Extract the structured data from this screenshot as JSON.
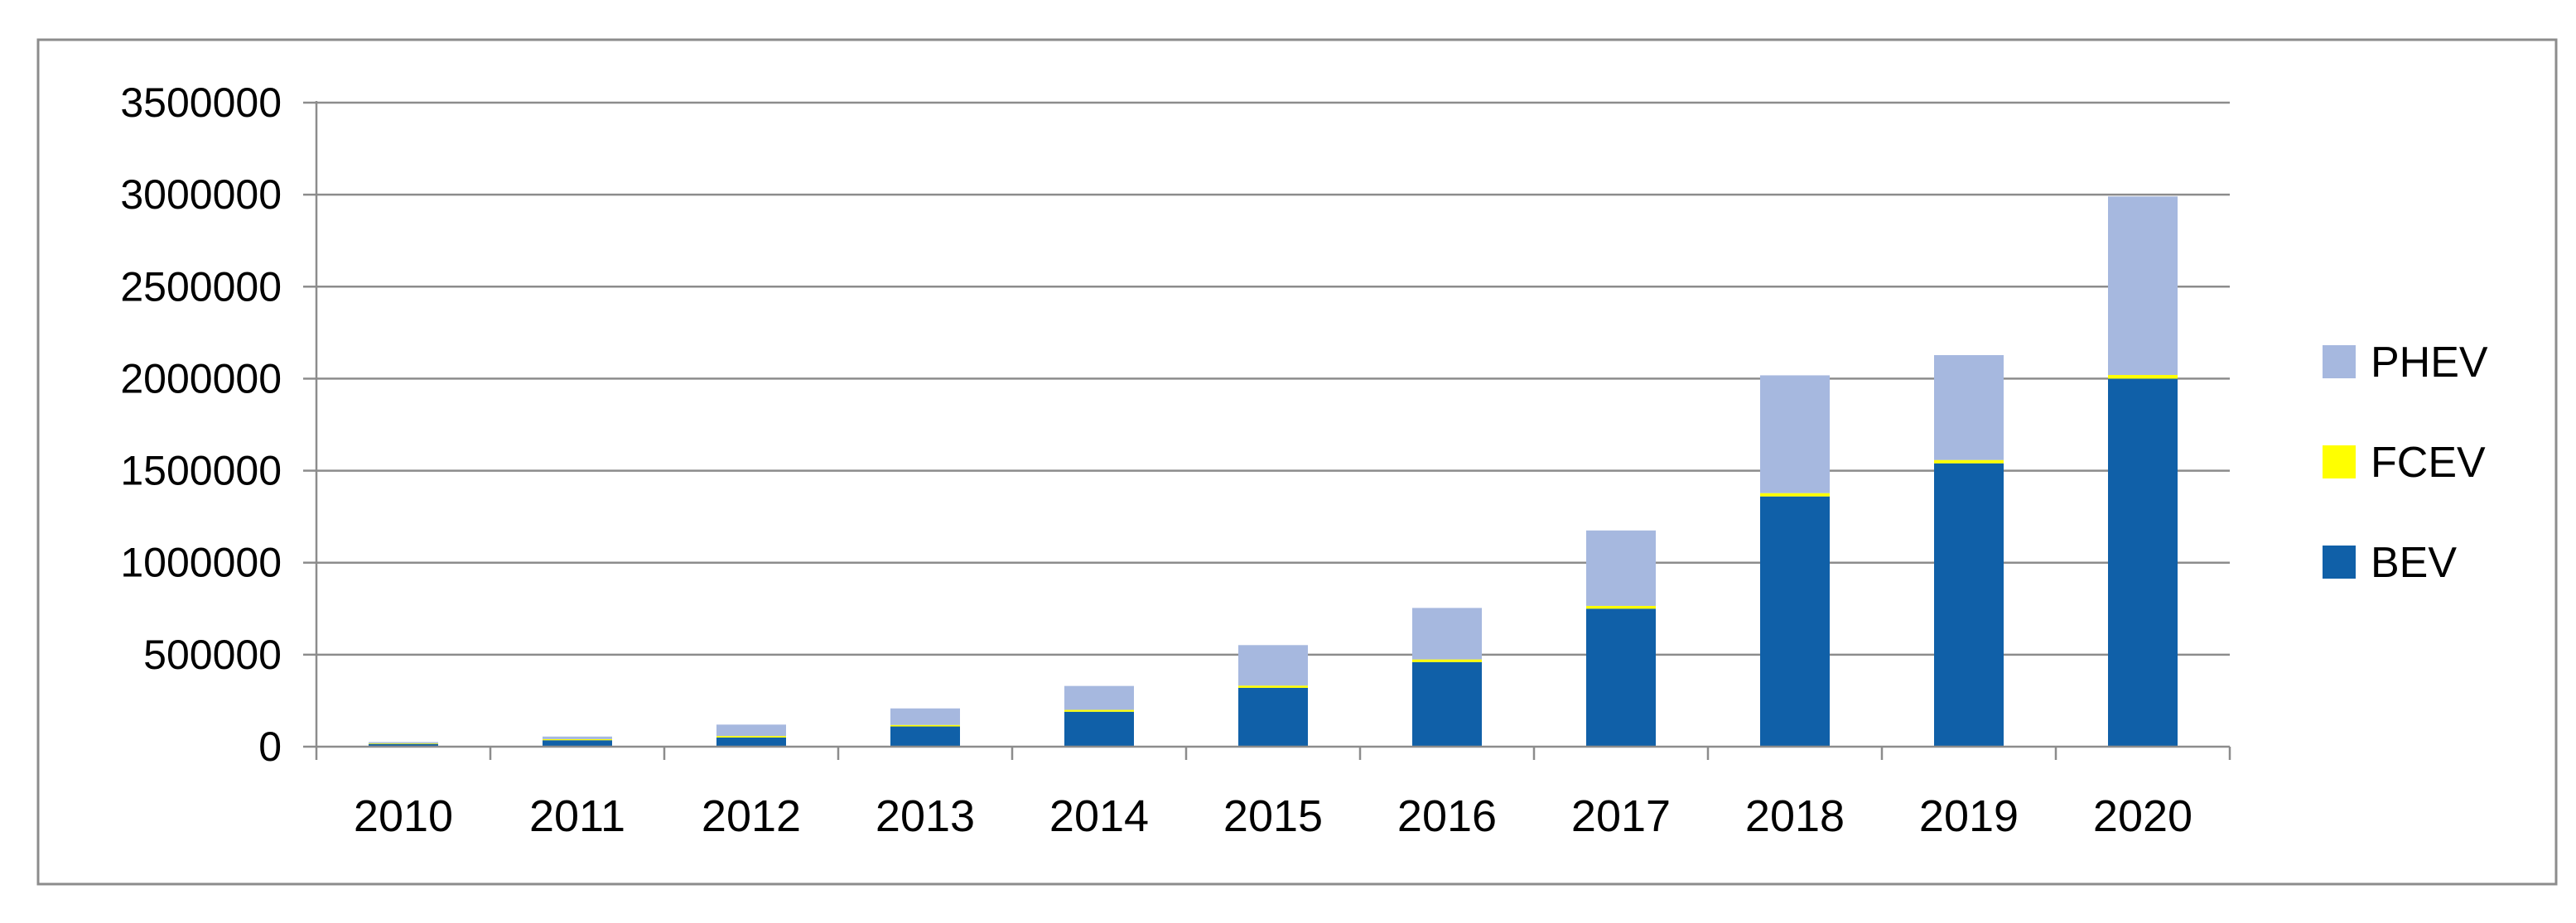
{
  "chart_data": {
    "type": "bar",
    "stacked": true,
    "categories": [
      "2010",
      "2011",
      "2012",
      "2013",
      "2014",
      "2015",
      "2016",
      "2017",
      "2018",
      "2019",
      "2020"
    ],
    "series": [
      {
        "name": "BEV",
        "color": "#1060a8",
        "values": [
          15000,
          35000,
          50000,
          110000,
          190000,
          320000,
          460000,
          750000,
          1360000,
          1540000,
          2000000
        ]
      },
      {
        "name": "FCEV",
        "color": "#ffff00",
        "values": [
          4000,
          6000,
          8000,
          8000,
          10000,
          12000,
          14000,
          15000,
          18000,
          18000,
          20000
        ]
      },
      {
        "name": "PHEV",
        "color": "#a6b8df",
        "values": [
          6000,
          14000,
          62000,
          90000,
          130000,
          220000,
          280000,
          410000,
          640000,
          570000,
          970000
        ]
      }
    ],
    "ylim": [
      0,
      3500000
    ],
    "yticks": [
      "0",
      "500000",
      "1000000",
      "1500000",
      "2000000",
      "2500000",
      "3000000",
      "3500000"
    ],
    "grid": true,
    "legend_position": "right",
    "title": "",
    "xlabel": "",
    "ylabel": ""
  }
}
